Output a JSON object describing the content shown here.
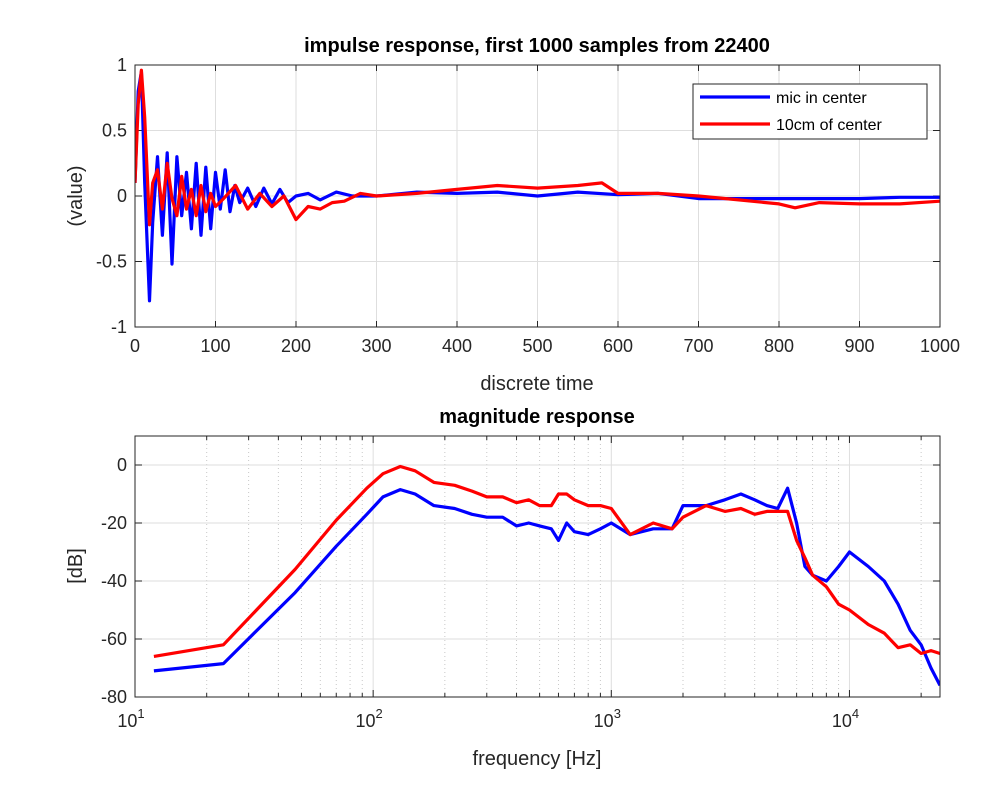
{
  "colors": {
    "mic_in_center": "#0000ff",
    "ten_cm": "#ff0000",
    "grid": "#dedede",
    "axes": "#262626"
  },
  "chart_data": [
    {
      "type": "line",
      "title": "impulse response, first 1000 samples from 22400",
      "xlabel": "discrete time",
      "ylabel": "(value)",
      "xlim": [
        0,
        1000
      ],
      "ylim": [
        -1,
        1
      ],
      "xticks": [
        0,
        100,
        200,
        300,
        400,
        500,
        600,
        700,
        800,
        900,
        1000
      ],
      "xtick_labels": [
        "0",
        "100",
        "200",
        "300",
        "400",
        "500",
        "600",
        "700",
        "800",
        "900",
        "1000"
      ],
      "yticks": [
        -1,
        -0.5,
        0,
        0.5,
        1
      ],
      "ytick_labels": [
        "-1",
        "-0.5",
        "0",
        "0.5",
        "1"
      ],
      "grid": true,
      "legend_position": "top-right",
      "series": [
        {
          "name": "mic in center",
          "color": "#0000ff",
          "x": [
            0,
            4,
            8,
            12,
            18,
            22,
            28,
            34,
            40,
            46,
            52,
            58,
            64,
            70,
            76,
            82,
            88,
            94,
            100,
            106,
            112,
            118,
            124,
            130,
            140,
            150,
            160,
            170,
            180,
            190,
            200,
            215,
            230,
            250,
            270,
            290,
            300,
            350,
            400,
            450,
            500,
            550,
            600,
            650,
            700,
            750,
            800,
            850,
            900,
            950,
            1000
          ],
          "y": [
            0.1,
            0.8,
            0.95,
            0.1,
            -0.8,
            -0.2,
            0.3,
            -0.3,
            0.33,
            -0.52,
            0.3,
            -0.15,
            0.18,
            -0.25,
            0.25,
            -0.3,
            0.22,
            -0.25,
            0.18,
            -0.1,
            0.2,
            -0.12,
            0.08,
            -0.05,
            0.06,
            -0.08,
            0.06,
            -0.06,
            0.05,
            -0.05,
            0.0,
            0.02,
            -0.03,
            0.03,
            0.0,
            0.0,
            0.0,
            0.03,
            0.02,
            0.03,
            0.0,
            0.03,
            0.01,
            0.02,
            -0.02,
            -0.02,
            -0.02,
            -0.02,
            -0.02,
            -0.01,
            -0.01
          ]
        },
        {
          "name": "10cm of center",
          "color": "#ff0000",
          "x": [
            0,
            4,
            8,
            12,
            18,
            22,
            28,
            34,
            40,
            46,
            52,
            58,
            64,
            70,
            76,
            82,
            88,
            94,
            100,
            110,
            125,
            140,
            155,
            170,
            185,
            200,
            215,
            230,
            245,
            260,
            280,
            300,
            350,
            400,
            450,
            500,
            550,
            580,
            600,
            650,
            700,
            750,
            800,
            820,
            850,
            900,
            950,
            1000
          ],
          "y": [
            0.1,
            0.7,
            0.96,
            0.6,
            -0.22,
            0.1,
            0.2,
            -0.1,
            0.25,
            -0.02,
            -0.15,
            0.15,
            -0.1,
            0.05,
            -0.15,
            0.08,
            -0.12,
            0.02,
            -0.08,
            -0.02,
            0.08,
            -0.1,
            0.02,
            -0.08,
            0.0,
            -0.18,
            -0.08,
            -0.1,
            -0.05,
            -0.04,
            0.02,
            0.0,
            0.02,
            0.05,
            0.08,
            0.06,
            0.08,
            0.1,
            0.02,
            0.02,
            0.0,
            -0.03,
            -0.06,
            -0.09,
            -0.05,
            -0.06,
            -0.06,
            -0.04
          ]
        }
      ]
    },
    {
      "type": "line",
      "title": "magnitude response",
      "xlabel": "frequency [Hz]",
      "ylabel": "[dB]",
      "xscale": "log",
      "xlim": [
        10,
        24000
      ],
      "ylim": [
        -80,
        10
      ],
      "xticks": [
        10,
        100,
        1000,
        10000
      ],
      "xtick_labels": [
        {
          "base": "10",
          "exp": "1"
        },
        {
          "base": "10",
          "exp": "2"
        },
        {
          "base": "10",
          "exp": "3"
        },
        {
          "base": "10",
          "exp": "4"
        }
      ],
      "yticks": [
        -80,
        -60,
        -40,
        -20,
        0
      ],
      "ytick_labels": [
        "-80",
        "-60",
        "-40",
        "-20",
        "0"
      ],
      "grid": true,
      "series": [
        {
          "name": "mic in center",
          "color": "#0000ff",
          "x": [
            12,
            23.5,
            47,
            70,
            94,
            110,
            130,
            150,
            180,
            220,
            260,
            300,
            350,
            400,
            450,
            500,
            560,
            600,
            650,
            700,
            800,
            900,
            1000,
            1200,
            1500,
            1800,
            2000,
            2500,
            3000,
            3500,
            4000,
            4500,
            5000,
            5500,
            6000,
            6500,
            7000,
            8000,
            9000,
            10000,
            12000,
            14000,
            16000,
            18000,
            20000,
            22000,
            24000
          ],
          "y": [
            -71,
            -68.5,
            -44,
            -28,
            -17,
            -11,
            -8.5,
            -10,
            -14,
            -15,
            -17,
            -18,
            -18,
            -21,
            -20,
            -21,
            -22,
            -26,
            -20,
            -23,
            -24,
            -22,
            -20,
            -24,
            -22,
            -22,
            -14,
            -14,
            -12,
            -10,
            -12,
            -14,
            -15,
            -8,
            -20,
            -35,
            -38,
            -40,
            -35,
            -30,
            -35,
            -40,
            -48,
            -57,
            -62,
            -70,
            -76
          ]
        },
        {
          "name": "10cm of center",
          "color": "#ff0000",
          "x": [
            12,
            23.5,
            47,
            70,
            94,
            110,
            130,
            150,
            180,
            220,
            260,
            300,
            350,
            400,
            450,
            500,
            560,
            600,
            650,
            700,
            800,
            900,
            1000,
            1200,
            1500,
            1800,
            2000,
            2500,
            3000,
            3500,
            4000,
            4500,
            5000,
            5500,
            6000,
            6500,
            7000,
            8000,
            9000,
            10000,
            12000,
            14000,
            16000,
            18000,
            20000,
            22000,
            24000
          ],
          "y": [
            -66,
            -62,
            -36,
            -19,
            -8,
            -3,
            -0.5,
            -2,
            -6,
            -7,
            -9,
            -11,
            -11,
            -13,
            -12,
            -14,
            -14,
            -10,
            -10,
            -12,
            -14,
            -14,
            -15,
            -24,
            -20,
            -22,
            -18,
            -14,
            -16,
            -15,
            -17,
            -16,
            -16,
            -16,
            -26,
            -32,
            -38,
            -42,
            -48,
            -50,
            -55,
            -58,
            -63,
            -62,
            -65,
            -64,
            -65
          ]
        }
      ]
    }
  ]
}
